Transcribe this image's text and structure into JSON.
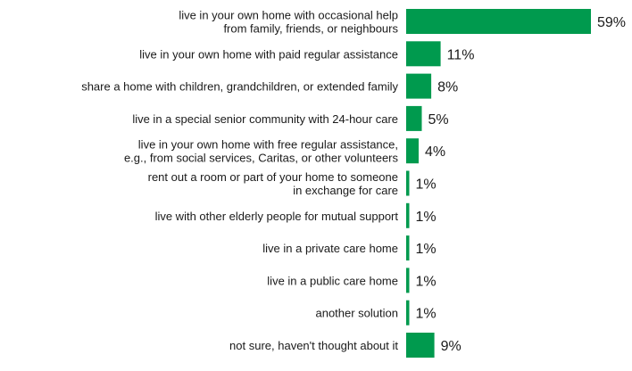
{
  "chart_data": {
    "type": "bar",
    "orientation": "horizontal",
    "bar_color": "#009a4e",
    "value_suffix": "%",
    "xlim": [
      0,
      59
    ],
    "grid": false,
    "legend": "none",
    "categories": [
      [
        "live in your own home with occasional help",
        "from family, friends, or neighbours"
      ],
      [
        "live in your own home with paid regular assistance"
      ],
      [
        "share a home with children, grandchildren, or extended family"
      ],
      [
        "live in a special senior community with 24-hour care"
      ],
      [
        "live in your own home with free regular assistance,",
        "e.g., from social services, Caritas, or other volunteers"
      ],
      [
        "rent out a room or part of your home to someone",
        "in exchange for care"
      ],
      [
        "live with other elderly people for mutual support"
      ],
      [
        "live in a private care home"
      ],
      [
        "live in a public care home"
      ],
      [
        "another solution"
      ],
      [
        "not sure, haven't thought about it"
      ]
    ],
    "values": [
      59,
      11,
      8,
      5,
      4,
      1,
      1,
      1,
      1,
      1,
      9
    ]
  }
}
